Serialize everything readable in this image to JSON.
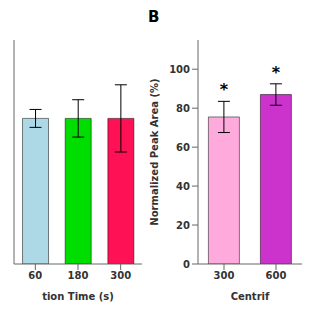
{
  "chart_data": [
    {
      "type": "bar",
      "categories": [
        "60",
        "180",
        "300"
      ],
      "values": [
        99.5,
        99.5,
        99.5
      ],
      "errors": [
        1.2,
        2.5,
        4.5
      ],
      "colors": [
        "#add8e6",
        "#00dd00",
        "#ff1155"
      ],
      "xlabel": "tion Time (s)",
      "ylim": [
        80,
        110
      ],
      "yticks": [],
      "tick_labels": "x"
    },
    {
      "type": "bar",
      "title": "B",
      "categories": [
        "300",
        "600"
      ],
      "values": [
        75.5,
        87.0
      ],
      "errors": [
        8.0,
        5.5
      ],
      "colors": [
        "#ffaadd",
        "#cc33cc"
      ],
      "xlabel": "Centrif",
      "ylabel": "Normalized Peak Area (%)",
      "ylim": [
        0,
        115
      ],
      "yticks": [
        0,
        20,
        40,
        60,
        80,
        100
      ],
      "annotations": [
        {
          "text": "*",
          "x": "300"
        },
        {
          "text": "*",
          "x": "600"
        }
      ]
    }
  ]
}
